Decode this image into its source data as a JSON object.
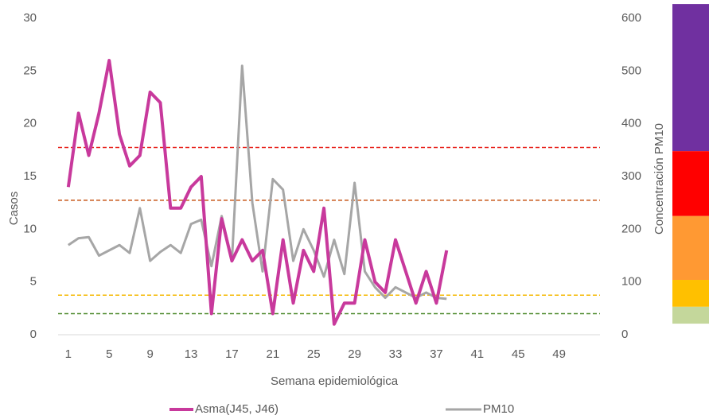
{
  "chart_data": {
    "type": "line",
    "xlabel": "Semana epidemiológica",
    "ylabel": "Casos",
    "y2label": "Concentración PM10",
    "x": [
      1,
      2,
      3,
      4,
      5,
      6,
      7,
      8,
      9,
      10,
      11,
      12,
      13,
      14,
      15,
      16,
      17,
      18,
      19,
      20,
      21,
      22,
      23,
      24,
      25,
      26,
      27,
      28,
      29,
      30,
      31,
      32,
      33,
      34,
      35,
      36,
      37,
      38
    ],
    "xlim": [
      0,
      53
    ],
    "xticks": [
      1,
      5,
      9,
      13,
      17,
      21,
      25,
      29,
      33,
      37,
      41,
      45,
      49
    ],
    "ylim": [
      0,
      30
    ],
    "yticks": [
      0,
      5,
      10,
      15,
      20,
      25,
      30
    ],
    "y2lim": [
      0,
      600
    ],
    "y2ticks": [
      0,
      100,
      200,
      300,
      400,
      500,
      600
    ],
    "series": [
      {
        "name": "Asma(J45, J46)",
        "color": "#c8399c",
        "values": [
          14,
          21,
          17,
          21,
          26,
          19,
          16,
          17,
          23,
          22,
          12,
          12,
          14,
          15,
          2,
          11,
          7,
          9,
          7,
          8,
          2,
          9,
          3,
          8,
          6,
          12,
          1,
          3,
          3,
          9,
          5,
          4,
          9,
          6,
          3,
          6,
          3,
          8
        ]
      },
      {
        "name": "PM10",
        "color": "#a6a6a6",
        "axis": "y2",
        "values": [
          170,
          183,
          185,
          150,
          160,
          170,
          155,
          240,
          140,
          157,
          170,
          155,
          210,
          218,
          130,
          225,
          140,
          510,
          250,
          120,
          295,
          275,
          140,
          200,
          160,
          110,
          180,
          115,
          288,
          120,
          90,
          70,
          90,
          80,
          70,
          80,
          70,
          68
        ]
      }
    ],
    "thresholds": [
      {
        "value": 355,
        "color": "#e8221c"
      },
      {
        "value": 255,
        "color": "#c8581a"
      },
      {
        "value": 75,
        "color": "#f5b800"
      },
      {
        "value": 40,
        "color": "#4e8a2e"
      }
    ],
    "bands": [
      {
        "from": 348,
        "to": 627,
        "color": "#7030a0"
      },
      {
        "from": 225,
        "to": 348,
        "color": "#ff0000"
      },
      {
        "from": 104,
        "to": 225,
        "color": "#ff9933"
      },
      {
        "from": 53,
        "to": 104,
        "color": "#ffc000"
      },
      {
        "from": 21,
        "to": 53,
        "color": "#c4d79b"
      }
    ]
  }
}
